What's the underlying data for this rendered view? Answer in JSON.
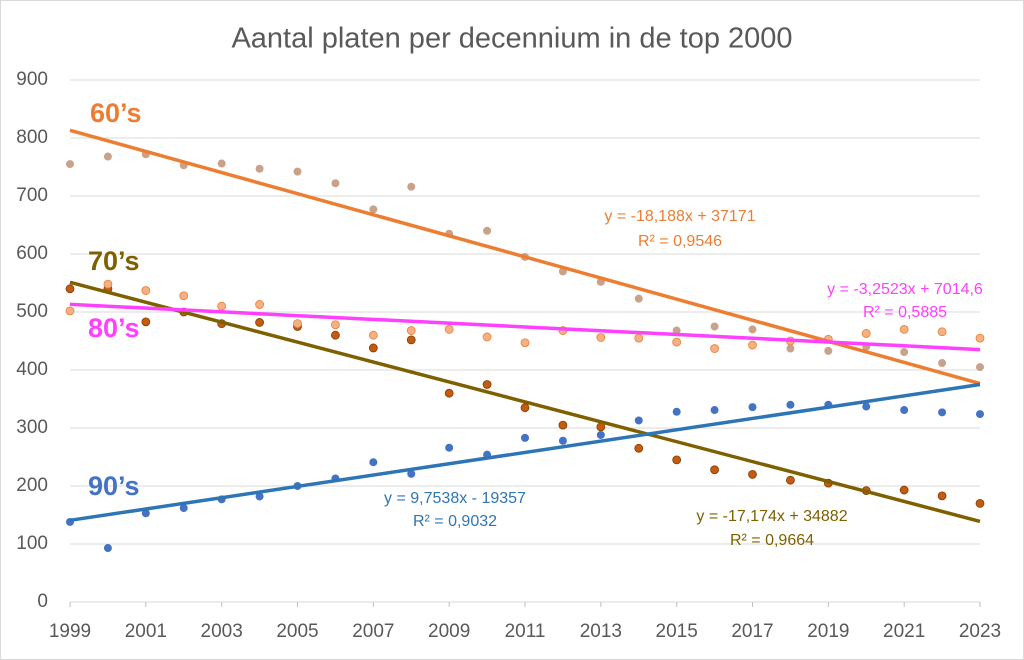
{
  "chart_data": {
    "type": "scatter",
    "title": "Aantal platen per decennium in de top 2000",
    "x": [
      1999,
      2000,
      2001,
      2002,
      2003,
      2004,
      2005,
      2006,
      2007,
      2008,
      2009,
      2010,
      2011,
      2012,
      2013,
      2014,
      2015,
      2016,
      2017,
      2018,
      2019,
      2020,
      2021,
      2022,
      2023
    ],
    "xlim": [
      1999,
      2023
    ],
    "xticks": [
      1999,
      2001,
      2003,
      2005,
      2007,
      2009,
      2011,
      2013,
      2015,
      2017,
      2019,
      2021,
      2023
    ],
    "ylim": [
      0,
      900
    ],
    "yticks": [
      0,
      100,
      200,
      300,
      400,
      500,
      600,
      700,
      800,
      900
    ],
    "grid": true,
    "series": [
      {
        "name": "60’s",
        "color": "#ed7d31",
        "marker_color": "#c9a28a",
        "values": [
          755,
          768,
          772,
          753,
          756,
          747,
          742,
          722,
          677,
          716,
          635,
          640,
          595,
          570,
          552,
          523,
          468,
          475,
          470,
          437,
          433,
          440,
          431,
          412,
          405
        ],
        "trendline": {
          "slope": -18.188,
          "intercept": 37171,
          "color": "#ed7d31",
          "equation": "y = -18,188x + 37171",
          "r2": "R² = 0,9546"
        }
      },
      {
        "name": "70’s",
        "color": "#7f6000",
        "marker_color": "#c55a11",
        "values": [
          540,
          540,
          483,
          500,
          480,
          482,
          475,
          460,
          438,
          452,
          360,
          375,
          335,
          305,
          302,
          265,
          245,
          228,
          220,
          210,
          205,
          192,
          193,
          183,
          170
        ],
        "trendline": {
          "slope": -17.174,
          "intercept": 34882,
          "color": "#7f6000",
          "equation": "y = -17,174x + 34882",
          "r2": "R² = 0,9664"
        }
      },
      {
        "name": "80’s",
        "color": "#ff40ff",
        "marker_color": "#f4b183",
        "values": [
          502,
          548,
          537,
          528,
          510,
          513,
          480,
          478,
          460,
          468,
          470,
          457,
          447,
          468,
          456,
          455,
          448,
          437,
          443,
          450,
          453,
          463,
          470,
          466,
          455
        ],
        "trendline": {
          "slope": -3.2523,
          "intercept": 7014.6,
          "color": "#ff40ff",
          "equation": "y = -3,2523x + 7014,6",
          "r2": "R² = 0,5885"
        }
      },
      {
        "name": "90’s",
        "color": "#4472c4",
        "marker_color": "#4472c4",
        "values": [
          138,
          93,
          153,
          162,
          177,
          182,
          200,
          213,
          241,
          221,
          266,
          254,
          283,
          278,
          288,
          313,
          328,
          331,
          336,
          340,
          340,
          337,
          331,
          327,
          324
        ],
        "trendline": {
          "slope": 9.7538,
          "intercept": -19357,
          "color": "#2e75b6",
          "equation": "y = 9,7538x - 19357",
          "r2": "R² = 0,9032"
        }
      }
    ]
  }
}
